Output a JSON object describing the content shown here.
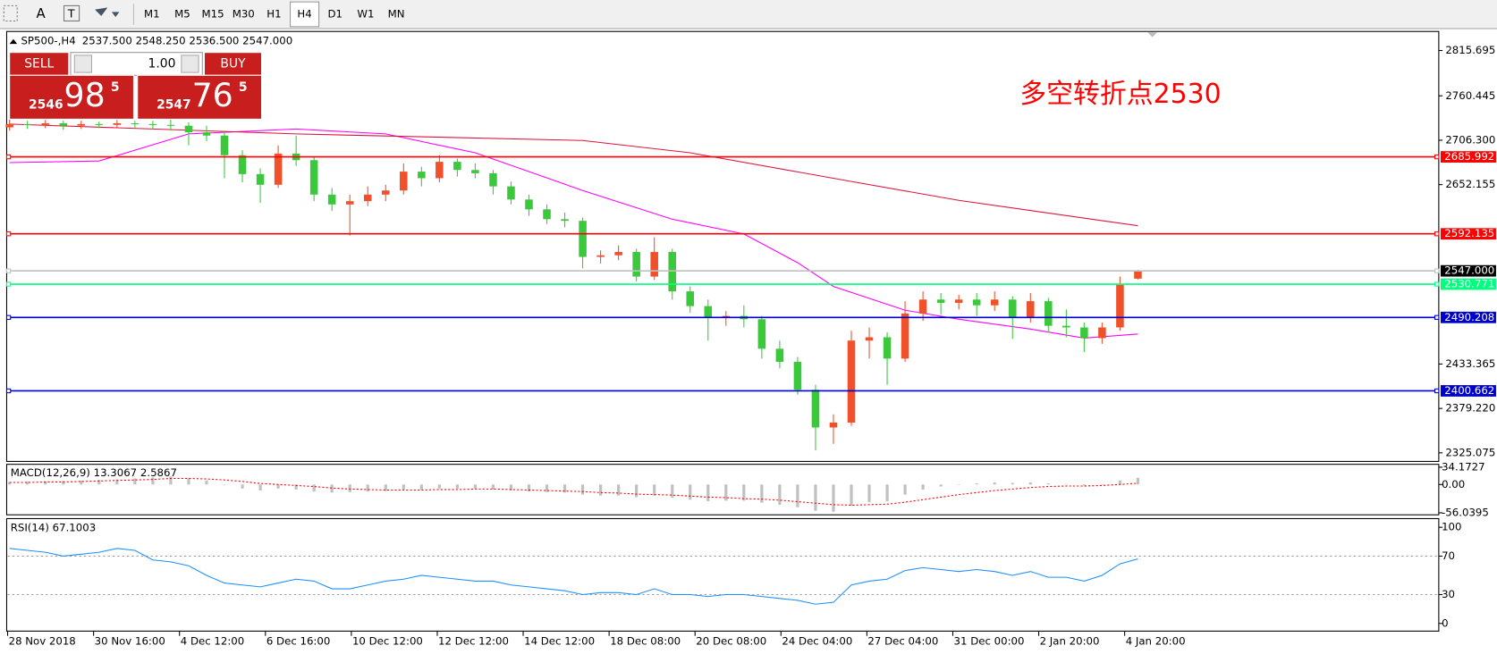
{
  "toolbar": {
    "timeframes": [
      "M1",
      "M5",
      "M15",
      "M30",
      "H1",
      "H4",
      "D1",
      "W1",
      "MN"
    ],
    "active": "H4"
  },
  "symbol_header": {
    "symbol": "SP500-,H4",
    "ohlc": [
      "2537.500",
      "2548.250",
      "2536.500",
      "2547.000"
    ]
  },
  "trade_panel": {
    "sell": "SELL",
    "buy": "BUY",
    "lots": "1.00",
    "sell_price": {
      "big_figure": "2546",
      "pips": "98",
      "fraction": "5"
    },
    "buy_price": {
      "big_figure": "2547",
      "pips": "76",
      "fraction": "5"
    }
  },
  "main_chart": {
    "annotation": "多空转折点2530",
    "ylim": [
      2314.6,
      2838.95
    ],
    "yticks": [
      2815.695,
      2760.445,
      {
        "value": 2706.3,
        "label": "2706.300"
      },
      2652.155,
      2433.365,
      {
        "value": 2379.22,
        "label": "2379.220"
      },
      2325.075
    ],
    "up_color": "#f0502a",
    "down_color": "#3cc83c",
    "levels": [
      {
        "value": 2685.992,
        "label": "2685.992",
        "color": "#ff0000"
      },
      {
        "value": 2592.135,
        "label": "2592.135",
        "color": "#ff0000"
      },
      {
        "value": 2547,
        "label": "2547.000",
        "color": "#c0c0c0",
        "label_color": "#000000"
      },
      {
        "value": 2530.771,
        "label": "2530.771",
        "color": "#00ff7f"
      },
      {
        "value": 2490.208,
        "label": "2490.208",
        "color": "#0000cd"
      },
      {
        "value": 2400.662,
        "label": "2400.662",
        "color": "#0000cd"
      }
    ],
    "candles": [
      {
        "open": 2722,
        "high": 2732,
        "low": 2718,
        "close": 2726
      },
      {
        "open": 2726,
        "high": 2730,
        "low": 2720,
        "close": 2725
      },
      {
        "open": 2725,
        "high": 2731,
        "low": 2721,
        "close": 2727
      },
      {
        "open": 2727,
        "high": 2730,
        "low": 2719,
        "close": 2724
      },
      {
        "open": 2724,
        "high": 2730,
        "low": 2720,
        "close": 2726
      },
      {
        "open": 2726,
        "high": 2729,
        "low": 2721,
        "close": 2725
      },
      {
        "open": 2725,
        "high": 2731,
        "low": 2722,
        "close": 2727
      },
      {
        "open": 2727,
        "high": 2730,
        "low": 2721,
        "close": 2726
      },
      {
        "open": 2726,
        "high": 2730,
        "low": 2720,
        "close": 2725
      },
      {
        "open": 2725,
        "high": 2732,
        "low": 2718,
        "close": 2724
      },
      {
        "open": 2724,
        "high": 2728,
        "low": 2700,
        "close": 2716
      },
      {
        "open": 2716,
        "high": 2724,
        "low": 2705,
        "close": 2712
      },
      {
        "open": 2712,
        "high": 2718,
        "low": 2660,
        "close": 2688
      },
      {
        "open": 2688,
        "high": 2694,
        "low": 2655,
        "close": 2665
      },
      {
        "open": 2665,
        "high": 2672,
        "low": 2630,
        "close": 2652
      },
      {
        "open": 2652,
        "high": 2700,
        "low": 2648,
        "close": 2690
      },
      {
        "open": 2690,
        "high": 2712,
        "low": 2675,
        "close": 2682
      },
      {
        "open": 2682,
        "high": 2686,
        "low": 2632,
        "close": 2640
      },
      {
        "open": 2640,
        "high": 2648,
        "low": 2620,
        "close": 2628
      },
      {
        "open": 2628,
        "high": 2640,
        "low": 2590,
        "close": 2632
      },
      {
        "open": 2632,
        "high": 2650,
        "low": 2626,
        "close": 2640
      },
      {
        "open": 2640,
        "high": 2652,
        "low": 2632,
        "close": 2645
      },
      {
        "open": 2645,
        "high": 2678,
        "low": 2640,
        "close": 2668
      },
      {
        "open": 2668,
        "high": 2674,
        "low": 2650,
        "close": 2660
      },
      {
        "open": 2660,
        "high": 2688,
        "low": 2655,
        "close": 2680
      },
      {
        "open": 2680,
        "high": 2684,
        "low": 2662,
        "close": 2670
      },
      {
        "open": 2670,
        "high": 2678,
        "low": 2660,
        "close": 2666
      },
      {
        "open": 2666,
        "high": 2670,
        "low": 2640,
        "close": 2650
      },
      {
        "open": 2650,
        "high": 2656,
        "low": 2628,
        "close": 2634
      },
      {
        "open": 2634,
        "high": 2640,
        "low": 2614,
        "close": 2622
      },
      {
        "open": 2622,
        "high": 2628,
        "low": 2604,
        "close": 2610
      },
      {
        "open": 2610,
        "high": 2618,
        "low": 2600,
        "close": 2608
      },
      {
        "open": 2608,
        "high": 2612,
        "low": 2550,
        "close": 2564
      },
      {
        "open": 2564,
        "high": 2572,
        "low": 2556,
        "close": 2566
      },
      {
        "open": 2566,
        "high": 2578,
        "low": 2560,
        "close": 2570
      },
      {
        "open": 2570,
        "high": 2574,
        "low": 2534,
        "close": 2540
      },
      {
        "open": 2540,
        "high": 2588,
        "low": 2536,
        "close": 2570
      },
      {
        "open": 2570,
        "high": 2574,
        "low": 2512,
        "close": 2522
      },
      {
        "open": 2522,
        "high": 2528,
        "low": 2496,
        "close": 2504
      },
      {
        "open": 2504,
        "high": 2512,
        "low": 2462,
        "close": 2490
      },
      {
        "open": 2490,
        "high": 2498,
        "low": 2480,
        "close": 2492
      },
      {
        "open": 2492,
        "high": 2505,
        "low": 2478,
        "close": 2488
      },
      {
        "open": 2488,
        "high": 2492,
        "low": 2440,
        "close": 2452
      },
      {
        "open": 2452,
        "high": 2462,
        "low": 2428,
        "close": 2436
      },
      {
        "open": 2436,
        "high": 2442,
        "low": 2396,
        "close": 2402
      },
      {
        "open": 2402,
        "high": 2408,
        "low": 2328,
        "close": 2356
      },
      {
        "open": 2356,
        "high": 2372,
        "low": 2336,
        "close": 2362
      },
      {
        "open": 2362,
        "high": 2474,
        "low": 2358,
        "close": 2462
      },
      {
        "open": 2462,
        "high": 2478,
        "low": 2440,
        "close": 2466
      },
      {
        "open": 2466,
        "high": 2472,
        "low": 2408,
        "close": 2440
      },
      {
        "open": 2440,
        "high": 2510,
        "low": 2436,
        "close": 2495
      },
      {
        "open": 2495,
        "high": 2522,
        "low": 2486,
        "close": 2512
      },
      {
        "open": 2512,
        "high": 2520,
        "low": 2494,
        "close": 2508
      },
      {
        "open": 2508,
        "high": 2518,
        "low": 2500,
        "close": 2512
      },
      {
        "open": 2512,
        "high": 2520,
        "low": 2492,
        "close": 2505
      },
      {
        "open": 2505,
        "high": 2522,
        "low": 2498,
        "close": 2512
      },
      {
        "open": 2512,
        "high": 2516,
        "low": 2464,
        "close": 2490
      },
      {
        "open": 2490,
        "high": 2520,
        "low": 2484,
        "close": 2510
      },
      {
        "open": 2510,
        "high": 2514,
        "low": 2472,
        "close": 2480
      },
      {
        "open": 2480,
        "high": 2500,
        "low": 2466,
        "close": 2478
      },
      {
        "open": 2478,
        "high": 2484,
        "low": 2448,
        "close": 2465
      },
      {
        "open": 2465,
        "high": 2484,
        "low": 2458,
        "close": 2478
      },
      {
        "open": 2478,
        "high": 2540,
        "low": 2474,
        "close": 2530
      },
      {
        "open": 2537.5,
        "high": 2548.25,
        "low": 2536.5,
        "close": 2547
      }
    ],
    "moving_averages": [
      {
        "color": "#ff00ff",
        "x": [
          0,
          5,
          10,
          16,
          21,
          26,
          32,
          37,
          41,
          44,
          46,
          50,
          53,
          57,
          60,
          63
        ],
        "values": [
          2679,
          2681,
          2714,
          2720,
          2714,
          2691,
          2645,
          2610,
          2592,
          2557,
          2528,
          2499,
          2488,
          2476,
          2465,
          2470
        ]
      },
      {
        "color": "#dc143c",
        "x": [
          0,
          16,
          32,
          38,
          47,
          53,
          63
        ],
        "values": [
          2726,
          2714,
          2706,
          2691,
          2656,
          2633,
          2602
        ]
      }
    ]
  },
  "macd": {
    "title": "MACD(12,26,9) 13.3067 2.5867",
    "ylim": [
      -60,
      40
    ],
    "yticks": [
      34.1727,
      {
        "value": 0,
        "label": "0.00"
      },
      -56.0395
    ],
    "histogram_color": "#c0c0c0",
    "signal_color": "#ff0000",
    "values": [
      5,
      6,
      6,
      7,
      8,
      9,
      10,
      12,
      14,
      16,
      12,
      8,
      0,
      -8,
      -12,
      -8,
      -10,
      -14,
      -16,
      -15,
      -14,
      -13,
      -10,
      -10,
      -8,
      -8,
      -8,
      -10,
      -12,
      -14,
      -15,
      -16,
      -20,
      -22,
      -22,
      -25,
      -22,
      -26,
      -30,
      -33,
      -32,
      -32,
      -36,
      -40,
      -45,
      -52,
      -54,
      -42,
      -35,
      -33,
      -20,
      -10,
      -4,
      0,
      2,
      4,
      3,
      4,
      2,
      1,
      -2,
      0,
      8,
      13.3067
    ],
    "signal": [
      4,
      4,
      5,
      5,
      6,
      7,
      8,
      9,
      10,
      12,
      12,
      11,
      9,
      6,
      2,
      0,
      -2,
      -4,
      -7,
      -9,
      -10,
      -11,
      -11,
      -11,
      -10,
      -10,
      -9,
      -9,
      -10,
      -11,
      -12,
      -13,
      -14,
      -16,
      -17,
      -19,
      -20,
      -21,
      -23,
      -25,
      -26,
      -28,
      -29,
      -31,
      -34,
      -37,
      -40,
      -41,
      -40,
      -39,
      -35,
      -30,
      -25,
      -20,
      -16,
      -12,
      -9,
      -6,
      -4,
      -3,
      -3,
      -2,
      0,
      2.5867
    ]
  },
  "rsi": {
    "title": "RSI(14) 67.1003",
    "ylim": [
      -8,
      109
    ],
    "yticks": [
      100,
      70,
      30,
      0
    ],
    "levels": [
      70,
      30
    ],
    "color": "#1e90ff",
    "values": [
      78,
      76,
      74,
      70,
      72,
      74,
      78,
      76,
      66,
      64,
      60,
      50,
      42,
      40,
      38,
      42,
      46,
      44,
      36,
      36,
      40,
      44,
      46,
      50,
      48,
      46,
      44,
      44,
      40,
      38,
      36,
      34,
      30,
      32,
      32,
      30,
      36,
      30,
      30,
      28,
      30,
      30,
      28,
      26,
      24,
      20,
      22,
      40,
      44,
      46,
      55,
      58,
      56,
      54,
      56,
      54,
      50,
      54,
      48,
      48,
      44,
      50,
      62,
      67.1003
    ]
  },
  "x_labels": [
    "28 Nov 2018",
    "30 Nov 16:00",
    "4 Dec 12:00",
    "6 Dec 16:00",
    "10 Dec 12:00",
    "12 Dec 12:00",
    "14 Dec 12:00",
    "18 Dec 08:00",
    "20 Dec 08:00",
    "24 Dec 04:00",
    "27 Dec 04:00",
    "31 Dec 00:00",
    "2 Jan 20:00",
    "4 Jan 20:00"
  ]
}
